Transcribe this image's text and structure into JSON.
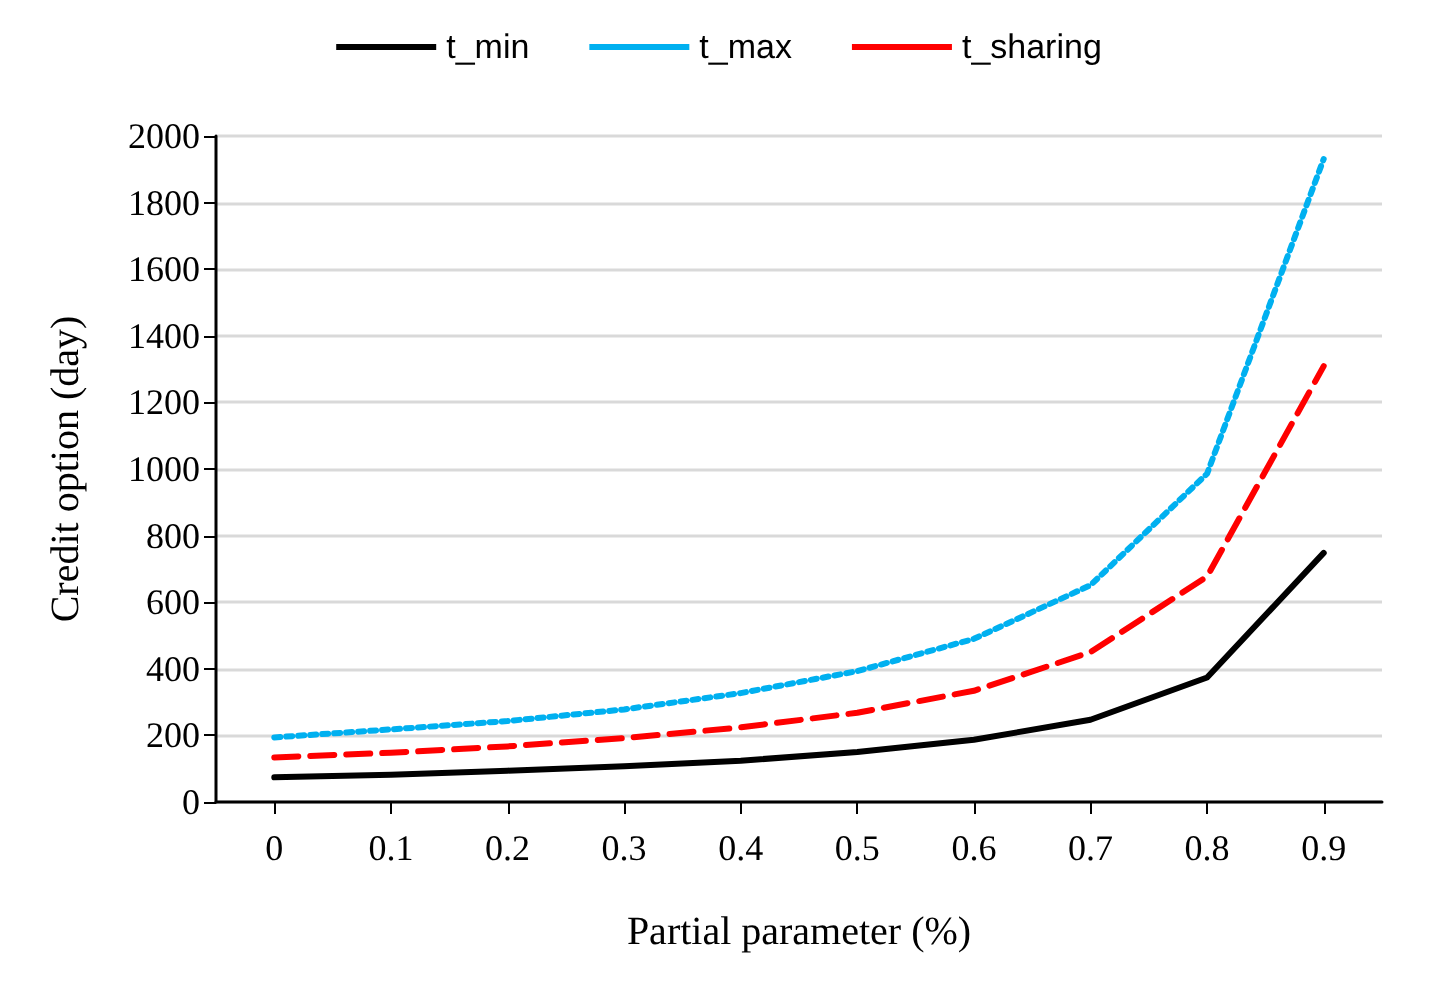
{
  "chart_data": {
    "type": "line",
    "xlabel": "Partial parameter (%)",
    "ylabel": "Credit option (day)",
    "categories": [
      "0",
      "0.1",
      "0.2",
      "0.3",
      "0.4",
      "0.5",
      "0.6",
      "0.7",
      "0.8",
      "0.9"
    ],
    "series": [
      {
        "name": "t_min",
        "color": "#000000",
        "line_style": "solid",
        "values": [
          74,
          82,
          94,
          107,
          124,
          150,
          187,
          247,
          374,
          748
        ]
      },
      {
        "name": "t_max",
        "color": "#00b0f0",
        "line_style": "dotted",
        "values": [
          194,
          218,
          243,
          278,
          327,
          393,
          490,
          651,
          986,
          1931
        ]
      },
      {
        "name": "t_sharing",
        "color": "#ff0000",
        "line_style": "dashed",
        "values": [
          134,
          148,
          167,
          192,
          224,
          268,
          334,
          450,
          677,
          1309
        ]
      }
    ],
    "ylim": [
      0,
      2000
    ],
    "yticks": [
      0,
      200,
      400,
      600,
      800,
      1000,
      1200,
      1400,
      1600,
      1800,
      2000
    ],
    "grid": "y",
    "legend": "top",
    "marker": "none"
  }
}
